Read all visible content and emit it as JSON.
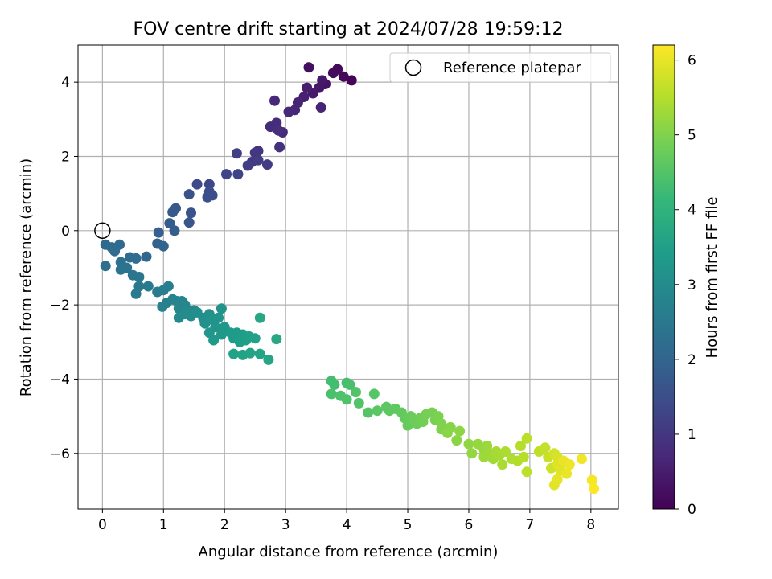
{
  "chart_data": {
    "type": "scatter",
    "title": "FOV centre drift starting at 2024/07/28 19:59:12",
    "xlabel": "Angular distance from reference (arcmin)",
    "ylabel": "Rotation from reference (arcmin)",
    "xlim": [
      -0.4,
      8.45
    ],
    "ylim": [
      -7.5,
      5.0
    ],
    "xticks": [
      0,
      1,
      2,
      3,
      4,
      5,
      6,
      7,
      8
    ],
    "yticks": [
      -6,
      -4,
      -2,
      0,
      2,
      4
    ],
    "grid": true,
    "legend": {
      "placement": "top-right",
      "label": "Reference platepar"
    },
    "reference_point": {
      "x": 0,
      "y": 0
    },
    "colorbar": {
      "label": "Hours from first FF file",
      "colormap": "viridis",
      "range": [
        0,
        6.2
      ],
      "ticks": [
        0,
        1,
        2,
        3,
        4,
        5,
        6
      ],
      "colors": [
        "#440154",
        "#482878",
        "#3e4989",
        "#31688e",
        "#26828e",
        "#1f9e89",
        "#35b779",
        "#6ece58",
        "#b5de2b",
        "#fde725"
      ]
    },
    "series": [
      {
        "name": "FOV centre drift",
        "points": [
          {
            "x": 4.08,
            "y": 4.05,
            "h": 0.05
          },
          {
            "x": 3.95,
            "y": 4.15,
            "h": 0.1
          },
          {
            "x": 3.85,
            "y": 4.35,
            "h": 0.15
          },
          {
            "x": 3.78,
            "y": 4.25,
            "h": 0.2
          },
          {
            "x": 3.38,
            "y": 4.4,
            "h": 0.25
          },
          {
            "x": 3.65,
            "y": 3.95,
            "h": 0.3
          },
          {
            "x": 3.55,
            "y": 3.85,
            "h": 0.35
          },
          {
            "x": 3.6,
            "y": 4.05,
            "h": 0.4
          },
          {
            "x": 3.45,
            "y": 3.7,
            "h": 0.45
          },
          {
            "x": 3.35,
            "y": 3.85,
            "h": 0.5
          },
          {
            "x": 3.3,
            "y": 3.6,
            "h": 0.55
          },
          {
            "x": 3.2,
            "y": 3.45,
            "h": 0.6
          },
          {
            "x": 3.58,
            "y": 3.32,
            "h": 0.62
          },
          {
            "x": 3.15,
            "y": 3.25,
            "h": 0.65
          },
          {
            "x": 3.05,
            "y": 3.2,
            "h": 0.7
          },
          {
            "x": 2.82,
            "y": 3.5,
            "h": 0.72
          },
          {
            "x": 2.95,
            "y": 2.65,
            "h": 0.75
          },
          {
            "x": 2.85,
            "y": 2.9,
            "h": 0.78
          },
          {
            "x": 2.75,
            "y": 2.8,
            "h": 0.8
          },
          {
            "x": 2.88,
            "y": 2.7,
            "h": 0.85
          },
          {
            "x": 2.9,
            "y": 2.25,
            "h": 0.9
          },
          {
            "x": 2.55,
            "y": 2.15,
            "h": 0.95
          },
          {
            "x": 2.5,
            "y": 2.1,
            "h": 1.0
          },
          {
            "x": 2.45,
            "y": 1.85,
            "h": 1.05
          },
          {
            "x": 2.55,
            "y": 1.9,
            "h": 1.1
          },
          {
            "x": 2.7,
            "y": 1.78,
            "h": 1.12
          },
          {
            "x": 2.38,
            "y": 1.75,
            "h": 1.15
          },
          {
            "x": 2.2,
            "y": 2.08,
            "h": 1.2
          },
          {
            "x": 2.22,
            "y": 1.52,
            "h": 1.25
          },
          {
            "x": 2.03,
            "y": 1.52,
            "h": 1.3
          },
          {
            "x": 1.75,
            "y": 1.25,
            "h": 1.35
          },
          {
            "x": 1.55,
            "y": 1.25,
            "h": 1.4
          },
          {
            "x": 1.75,
            "y": 1.05,
            "h": 1.45
          },
          {
            "x": 1.8,
            "y": 0.95,
            "h": 1.5
          },
          {
            "x": 1.72,
            "y": 0.9,
            "h": 1.52
          },
          {
            "x": 1.42,
            "y": 0.98,
            "h": 1.55
          },
          {
            "x": 1.45,
            "y": 0.48,
            "h": 1.6
          },
          {
            "x": 1.42,
            "y": 0.22,
            "h": 1.65
          },
          {
            "x": 1.2,
            "y": 0.6,
            "h": 1.7
          },
          {
            "x": 1.15,
            "y": 0.5,
            "h": 1.75
          },
          {
            "x": 1.1,
            "y": 0.2,
            "h": 1.8
          },
          {
            "x": 1.18,
            "y": 0.0,
            "h": 1.85
          },
          {
            "x": 0.92,
            "y": -0.05,
            "h": 1.9
          },
          {
            "x": 0.9,
            "y": -0.35,
            "h": 1.95
          },
          {
            "x": 1.0,
            "y": -0.42,
            "h": 2.0
          },
          {
            "x": 0.72,
            "y": -0.7,
            "h": 2.05
          },
          {
            "x": 0.05,
            "y": -0.38,
            "h": 2.1
          },
          {
            "x": 0.15,
            "y": -0.45,
            "h": 2.12
          },
          {
            "x": 0.28,
            "y": -0.38,
            "h": 2.15
          },
          {
            "x": 0.2,
            "y": -0.55,
            "h": 2.18
          },
          {
            "x": 0.45,
            "y": -0.72,
            "h": 2.2
          },
          {
            "x": 0.55,
            "y": -0.75,
            "h": 2.22
          },
          {
            "x": 0.05,
            "y": -0.95,
            "h": 2.25
          },
          {
            "x": 0.3,
            "y": -0.85,
            "h": 2.3
          },
          {
            "x": 0.4,
            "y": -1.0,
            "h": 2.32
          },
          {
            "x": 0.3,
            "y": -1.05,
            "h": 2.35
          },
          {
            "x": 0.5,
            "y": -1.2,
            "h": 2.4
          },
          {
            "x": 0.6,
            "y": -1.25,
            "h": 2.45
          },
          {
            "x": 0.6,
            "y": -1.5,
            "h": 2.5
          },
          {
            "x": 0.75,
            "y": -1.5,
            "h": 2.52
          },
          {
            "x": 0.55,
            "y": -1.7,
            "h": 2.55
          },
          {
            "x": 0.9,
            "y": -1.65,
            "h": 2.6
          },
          {
            "x": 1.0,
            "y": -1.6,
            "h": 2.62
          },
          {
            "x": 1.08,
            "y": -1.5,
            "h": 2.65
          },
          {
            "x": 1.05,
            "y": -1.95,
            "h": 2.7
          },
          {
            "x": 0.98,
            "y": -2.05,
            "h": 2.72
          },
          {
            "x": 1.15,
            "y": -1.85,
            "h": 2.75
          },
          {
            "x": 1.22,
            "y": -1.9,
            "h": 2.8
          },
          {
            "x": 1.3,
            "y": -1.9,
            "h": 2.82
          },
          {
            "x": 1.25,
            "y": -2.1,
            "h": 2.85
          },
          {
            "x": 1.35,
            "y": -2.0,
            "h": 2.88
          },
          {
            "x": 1.4,
            "y": -2.15,
            "h": 2.9
          },
          {
            "x": 1.5,
            "y": -2.15,
            "h": 2.92
          },
          {
            "x": 1.25,
            "y": -2.35,
            "h": 2.95
          },
          {
            "x": 1.35,
            "y": -2.25,
            "h": 3.0
          },
          {
            "x": 1.45,
            "y": -2.3,
            "h": 3.02
          },
          {
            "x": 1.55,
            "y": -2.2,
            "h": 3.05
          },
          {
            "x": 1.65,
            "y": -2.35,
            "h": 3.08
          },
          {
            "x": 1.75,
            "y": -2.25,
            "h": 3.1
          },
          {
            "x": 1.68,
            "y": -2.5,
            "h": 3.12
          },
          {
            "x": 1.8,
            "y": -2.4,
            "h": 3.15
          },
          {
            "x": 1.95,
            "y": -2.1,
            "h": 3.18
          },
          {
            "x": 1.9,
            "y": -2.35,
            "h": 3.2
          },
          {
            "x": 1.85,
            "y": -2.6,
            "h": 3.22
          },
          {
            "x": 1.75,
            "y": -2.75,
            "h": 3.25
          },
          {
            "x": 2.0,
            "y": -2.6,
            "h": 3.28
          },
          {
            "x": 1.82,
            "y": -2.95,
            "h": 3.3
          },
          {
            "x": 1.95,
            "y": -2.8,
            "h": 3.32
          },
          {
            "x": 2.1,
            "y": -2.75,
            "h": 3.35
          },
          {
            "x": 2.15,
            "y": -2.9,
            "h": 3.38
          },
          {
            "x": 2.2,
            "y": -2.75,
            "h": 3.4
          },
          {
            "x": 2.3,
            "y": -2.8,
            "h": 3.42
          },
          {
            "x": 2.25,
            "y": -3.0,
            "h": 3.45
          },
          {
            "x": 2.35,
            "y": -2.95,
            "h": 3.48
          },
          {
            "x": 2.4,
            "y": -2.85,
            "h": 3.5
          },
          {
            "x": 2.5,
            "y": -2.9,
            "h": 3.52
          },
          {
            "x": 2.15,
            "y": -3.32,
            "h": 3.55
          },
          {
            "x": 2.3,
            "y": -3.35,
            "h": 3.58
          },
          {
            "x": 2.42,
            "y": -3.3,
            "h": 3.6
          },
          {
            "x": 2.58,
            "y": -3.32,
            "h": 3.62
          },
          {
            "x": 2.72,
            "y": -3.48,
            "h": 3.65
          },
          {
            "x": 2.85,
            "y": -2.92,
            "h": 3.68
          },
          {
            "x": 2.58,
            "y": -2.35,
            "h": 3.7
          },
          {
            "x": 3.75,
            "y": -4.05,
            "h": 4.3
          },
          {
            "x": 3.8,
            "y": -4.15,
            "h": 4.32
          },
          {
            "x": 4.0,
            "y": -4.1,
            "h": 4.35
          },
          {
            "x": 4.05,
            "y": -4.15,
            "h": 4.38
          },
          {
            "x": 3.75,
            "y": -4.4,
            "h": 4.4
          },
          {
            "x": 3.9,
            "y": -4.45,
            "h": 4.42
          },
          {
            "x": 4.0,
            "y": -4.55,
            "h": 4.45
          },
          {
            "x": 4.15,
            "y": -4.35,
            "h": 4.48
          },
          {
            "x": 4.2,
            "y": -4.65,
            "h": 4.5
          },
          {
            "x": 4.35,
            "y": -4.9,
            "h": 4.52
          },
          {
            "x": 4.45,
            "y": -4.4,
            "h": 4.55
          },
          {
            "x": 4.5,
            "y": -4.85,
            "h": 4.58
          },
          {
            "x": 4.65,
            "y": -4.75,
            "h": 4.6
          },
          {
            "x": 4.7,
            "y": -4.85,
            "h": 4.62
          },
          {
            "x": 4.8,
            "y": -4.8,
            "h": 4.65
          },
          {
            "x": 4.9,
            "y": -4.9,
            "h": 4.68
          },
          {
            "x": 4.95,
            "y": -5.05,
            "h": 4.7
          },
          {
            "x": 5.0,
            "y": -5.25,
            "h": 4.72
          },
          {
            "x": 5.05,
            "y": -5.0,
            "h": 4.75
          },
          {
            "x": 5.1,
            "y": -5.1,
            "h": 4.78
          },
          {
            "x": 5.15,
            "y": -5.2,
            "h": 4.8
          },
          {
            "x": 5.2,
            "y": -5.05,
            "h": 4.82
          },
          {
            "x": 5.25,
            "y": -5.15,
            "h": 4.85
          },
          {
            "x": 5.3,
            "y": -4.95,
            "h": 4.88
          },
          {
            "x": 5.4,
            "y": -4.9,
            "h": 4.9
          },
          {
            "x": 5.45,
            "y": -5.1,
            "h": 4.92
          },
          {
            "x": 5.5,
            "y": -5.0,
            "h": 4.95
          },
          {
            "x": 5.55,
            "y": -5.2,
            "h": 4.98
          },
          {
            "x": 5.55,
            "y": -5.35,
            "h": 5.0
          },
          {
            "x": 5.7,
            "y": -5.3,
            "h": 5.05
          },
          {
            "x": 5.65,
            "y": -5.45,
            "h": 5.08
          },
          {
            "x": 5.8,
            "y": -5.65,
            "h": 5.1
          },
          {
            "x": 5.85,
            "y": -5.4,
            "h": 5.12
          },
          {
            "x": 6.0,
            "y": -5.75,
            "h": 5.15
          },
          {
            "x": 6.05,
            "y": -6.0,
            "h": 5.18
          },
          {
            "x": 6.15,
            "y": -5.75,
            "h": 5.2
          },
          {
            "x": 6.25,
            "y": -5.9,
            "h": 5.22
          },
          {
            "x": 6.3,
            "y": -5.8,
            "h": 5.25
          },
          {
            "x": 6.25,
            "y": -6.1,
            "h": 5.28
          },
          {
            "x": 6.35,
            "y": -6.0,
            "h": 5.3
          },
          {
            "x": 6.4,
            "y": -6.15,
            "h": 5.32
          },
          {
            "x": 6.45,
            "y": -5.95,
            "h": 5.35
          },
          {
            "x": 6.5,
            "y": -6.05,
            "h": 5.38
          },
          {
            "x": 6.55,
            "y": -6.3,
            "h": 5.4
          },
          {
            "x": 6.6,
            "y": -5.95,
            "h": 5.42
          },
          {
            "x": 6.7,
            "y": -6.15,
            "h": 5.45
          },
          {
            "x": 6.8,
            "y": -6.2,
            "h": 5.48
          },
          {
            "x": 6.85,
            "y": -5.8,
            "h": 5.5
          },
          {
            "x": 6.9,
            "y": -6.1,
            "h": 5.52
          },
          {
            "x": 6.95,
            "y": -5.6,
            "h": 5.55
          },
          {
            "x": 6.95,
            "y": -6.5,
            "h": 5.58
          },
          {
            "x": 7.15,
            "y": -5.95,
            "h": 5.6
          },
          {
            "x": 7.25,
            "y": -5.85,
            "h": 5.65
          },
          {
            "x": 7.3,
            "y": -6.1,
            "h": 5.7
          },
          {
            "x": 7.35,
            "y": -6.4,
            "h": 5.75
          },
          {
            "x": 7.4,
            "y": -6.0,
            "h": 5.8
          },
          {
            "x": 7.45,
            "y": -6.1,
            "h": 5.85
          },
          {
            "x": 7.45,
            "y": -6.3,
            "h": 5.9
          },
          {
            "x": 7.5,
            "y": -6.45,
            "h": 5.92
          },
          {
            "x": 7.4,
            "y": -6.85,
            "h": 5.95
          },
          {
            "x": 7.45,
            "y": -6.7,
            "h": 5.98
          },
          {
            "x": 7.55,
            "y": -6.2,
            "h": 6.0
          },
          {
            "x": 7.6,
            "y": -6.55,
            "h": 6.02
          },
          {
            "x": 7.65,
            "y": -6.3,
            "h": 6.05
          },
          {
            "x": 7.85,
            "y": -6.15,
            "h": 6.08
          },
          {
            "x": 8.02,
            "y": -6.72,
            "h": 6.12
          },
          {
            "x": 8.05,
            "y": -6.95,
            "h": 6.18
          }
        ]
      }
    ]
  }
}
